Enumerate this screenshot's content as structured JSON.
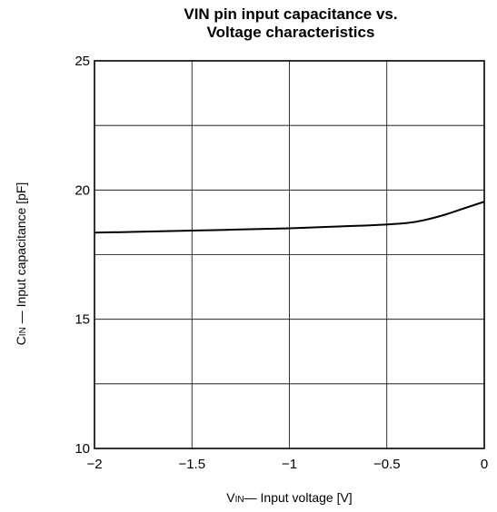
{
  "chart_data": {
    "type": "line",
    "title_lines": [
      "VIN pin input capacitance vs.",
      "Voltage characteristics"
    ],
    "xlabel_parts": [
      "V",
      "IN",
      "— Input voltage  [V]"
    ],
    "ylabel_parts": [
      "C",
      "IN",
      " — Input capacitance [pF]"
    ],
    "xlim": [
      -2,
      0
    ],
    "ylim": [
      10,
      25
    ],
    "x_ticks": [
      -2,
      -1.5,
      -1,
      -0.5,
      0
    ],
    "x_tick_labels": [
      "−2",
      "−1.5",
      "−1",
      "−0.5",
      "0"
    ],
    "y_ticks": [
      10,
      15,
      20,
      25
    ],
    "y_tick_labels": [
      "10",
      "15",
      "20",
      "25"
    ],
    "grid": true,
    "grid_x": [
      -1.5,
      -1,
      -0.5
    ],
    "grid_y": [
      12.5,
      15,
      17.5,
      20,
      22.5
    ],
    "series": [
      {
        "x": [
          -2,
          -1.5,
          -1,
          -0.6,
          -0.4,
          -0.3,
          -0.2,
          -0.1,
          0
        ],
        "y": [
          18.35,
          18.43,
          18.52,
          18.63,
          18.72,
          18.85,
          19.05,
          19.3,
          19.55
        ]
      }
    ],
    "line_color": "#000000",
    "grid_color": "#000000"
  }
}
